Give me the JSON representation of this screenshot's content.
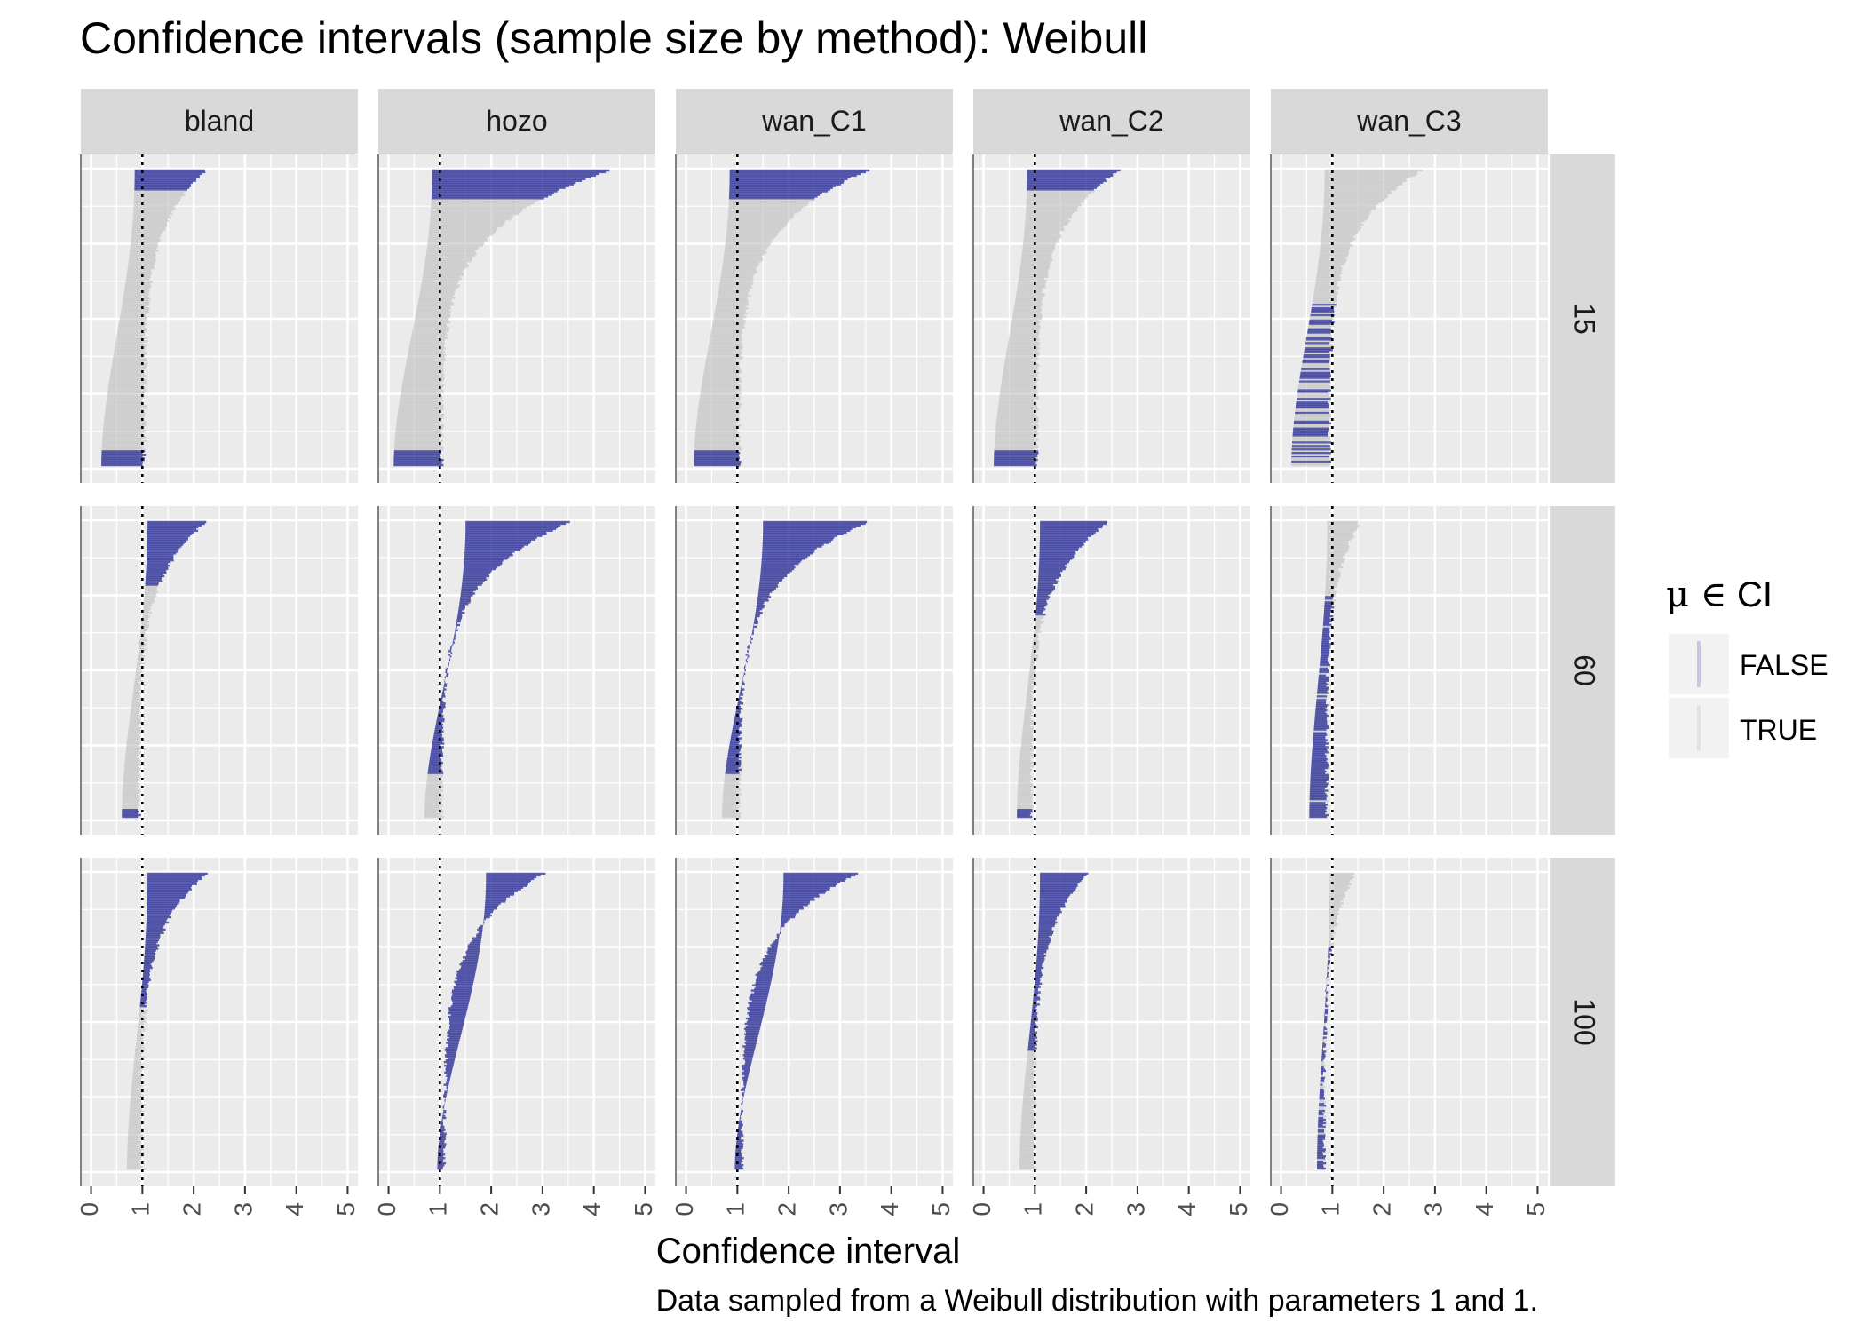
{
  "title": "Confidence intervals (sample size by method): Weibull",
  "xlabel": "Confidence interval",
  "caption": "Data sampled from a Weibull distribution with parameters 1 and 1.",
  "legend": {
    "title_symbol": "μ ∈",
    "title_text": "CI",
    "entries": [
      {
        "label": "FALSE",
        "color": "#2b2f96"
      },
      {
        "label": "TRUE",
        "color": "#c8c8c8"
      }
    ]
  },
  "colors": {
    "false_ci": "#2b2f96",
    "true_ci": "#bdbdbd",
    "panel_bg": "#ebebeb",
    "strip_bg": "#d9d9d9",
    "grid": "#ffffff",
    "true_mean_line": "#000000"
  },
  "chart_data": {
    "type": "interval",
    "facet_columns": [
      "bland",
      "hozo",
      "wan_C1",
      "wan_C2",
      "wan_C3"
    ],
    "facet_rows": [
      "15",
      "60",
      "100"
    ],
    "x_ticks": [
      "0",
      "1",
      "2",
      "3",
      "4",
      "5"
    ],
    "xlim": [
      -0.2,
      5.2
    ],
    "true_mean": 1,
    "panels": [
      {
        "method": "bland",
        "n": "15",
        "lower": [
          0.2,
          0.85
        ],
        "upper": [
          1.0,
          2.2
        ],
        "true_frac_bottom": 0.05,
        "false_frac_top": 0.07,
        "false_color_scheme": "top-bottom"
      },
      {
        "method": "hozo",
        "n": "15",
        "lower": [
          0.1,
          0.85
        ],
        "upper": [
          1.0,
          4.3
        ],
        "true_frac_bottom": 0.05,
        "false_frac_top": 0.1,
        "false_color_scheme": "top-bottom"
      },
      {
        "method": "wan_C1",
        "n": "15",
        "lower": [
          0.15,
          0.85
        ],
        "upper": [
          1.0,
          3.5
        ],
        "true_frac_bottom": 0.05,
        "false_frac_top": 0.1,
        "false_color_scheme": "top-bottom"
      },
      {
        "method": "wan_C2",
        "n": "15",
        "lower": [
          0.2,
          0.85
        ],
        "upper": [
          1.0,
          2.6
        ],
        "true_frac_bottom": 0.05,
        "false_frac_top": 0.07,
        "false_color_scheme": "top-bottom"
      },
      {
        "method": "wan_C3",
        "n": "15",
        "lower": [
          0.2,
          0.85
        ],
        "upper": [
          0.9,
          2.7
        ],
        "true_frac_bottom": 0.45,
        "false_frac_top": 0.0,
        "false_color_scheme": "bottom-scattered"
      },
      {
        "method": "bland",
        "n": "60",
        "lower": [
          0.6,
          1.1
        ],
        "upper": [
          0.9,
          2.2
        ],
        "true_frac_bottom": 0.03,
        "false_frac_top": 0.22,
        "false_color_scheme": "top-bottom"
      },
      {
        "method": "hozo",
        "n": "60",
        "lower": [
          0.7,
          1.5
        ],
        "upper": [
          1.0,
          3.5
        ],
        "true_frac_bottom": 0.0,
        "false_frac_top": 0.85,
        "false_color_scheme": "top"
      },
      {
        "method": "wan_C1",
        "n": "60",
        "lower": [
          0.7,
          1.5
        ],
        "upper": [
          1.0,
          3.5
        ],
        "true_frac_bottom": 0.0,
        "false_frac_top": 0.85,
        "false_color_scheme": "top"
      },
      {
        "method": "wan_C2",
        "n": "60",
        "lower": [
          0.65,
          1.1
        ],
        "upper": [
          0.9,
          2.4
        ],
        "true_frac_bottom": 0.03,
        "false_frac_top": 0.32,
        "false_color_scheme": "top-bottom"
      },
      {
        "method": "wan_C3",
        "n": "60",
        "lower": [
          0.55,
          0.9
        ],
        "upper": [
          0.85,
          1.5
        ],
        "true_frac_bottom": 0.0,
        "false_frac_top": 0.0,
        "false_color_scheme": "bottom-large"
      },
      {
        "method": "bland",
        "n": "100",
        "lower": [
          0.7,
          1.1
        ],
        "upper": [
          0.95,
          2.2
        ],
        "true_frac_bottom": 0.0,
        "false_frac_top": 0.45,
        "false_color_scheme": "top"
      },
      {
        "method": "hozo",
        "n": "100",
        "lower": [
          0.95,
          1.9
        ],
        "upper": [
          1.05,
          3.0
        ],
        "true_frac_bottom": 0.0,
        "false_frac_top": 1.0,
        "false_color_scheme": "top"
      },
      {
        "method": "wan_C1",
        "n": "100",
        "lower": [
          0.95,
          1.9
        ],
        "upper": [
          1.05,
          3.3
        ],
        "true_frac_bottom": 0.0,
        "false_frac_top": 1.0,
        "false_color_scheme": "top"
      },
      {
        "method": "wan_C2",
        "n": "100",
        "lower": [
          0.7,
          1.1
        ],
        "upper": [
          0.95,
          2.0
        ],
        "true_frac_bottom": 0.0,
        "false_frac_top": 0.6,
        "false_color_scheme": "top"
      },
      {
        "method": "wan_C3",
        "n": "100",
        "lower": [
          0.7,
          0.95
        ],
        "upper": [
          0.8,
          1.4
        ],
        "true_frac_bottom": 0.0,
        "false_frac_top": 0.0,
        "false_color_scheme": "bottom-large"
      }
    ]
  }
}
